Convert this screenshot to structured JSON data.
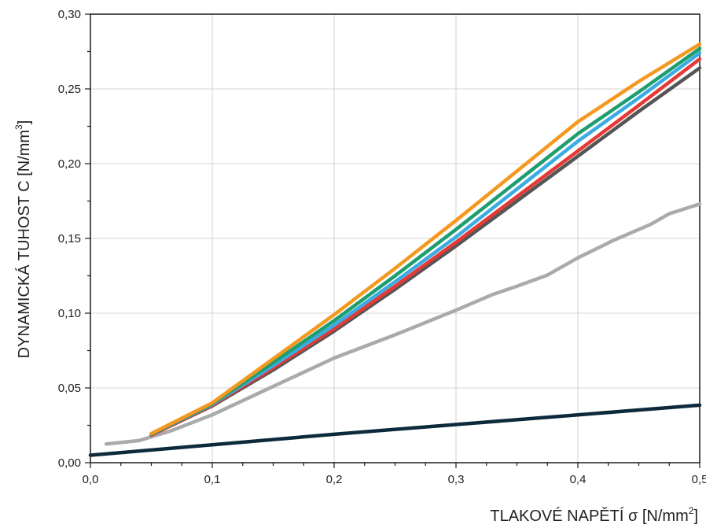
{
  "chart_data": {
    "type": "line",
    "title": "",
    "xlabel": "TLAKOVÉ NAPĚTÍ σ [N/mm",
    "xlabel_sup": "2",
    "xlabel_end": "]",
    "ylabel": "DYNAMICKÁ TUHOST C [N/mm",
    "ylabel_sup": "3",
    "ylabel_end": "]",
    "xlim": [
      0,
      0.5
    ],
    "ylim": [
      0,
      0.3
    ],
    "x_ticks": [
      0,
      0.1,
      0.2,
      0.3,
      0.4,
      0.5
    ],
    "x_tick_labels": [
      "0,0",
      "0,1",
      "0,2",
      "0,3",
      "0,4",
      "0,5"
    ],
    "y_ticks": [
      0,
      0.05,
      0.1,
      0.15,
      0.2,
      0.25,
      0.3
    ],
    "y_tick_labels": [
      "0,00",
      "0,05",
      "0,10",
      "0,15",
      "0,20",
      "0,25",
      "0,30"
    ],
    "x_grid": [
      0.1,
      0.2,
      0.3,
      0.4
    ],
    "y_grid": [
      0.05,
      0.1,
      0.15,
      0.2,
      0.25
    ],
    "grid": true,
    "series": [
      {
        "color": "#aaaaaa",
        "points": [
          [
            0.013,
            0.0125
          ],
          [
            0.04,
            0.0148
          ],
          [
            0.065,
            0.021
          ],
          [
            0.1,
            0.032
          ],
          [
            0.15,
            0.051
          ],
          [
            0.2,
            0.07
          ],
          [
            0.25,
            0.0855
          ],
          [
            0.3,
            0.102
          ],
          [
            0.33,
            0.1125
          ],
          [
            0.35,
            0.118
          ],
          [
            0.375,
            0.1255
          ],
          [
            0.4,
            0.137
          ],
          [
            0.43,
            0.149
          ],
          [
            0.46,
            0.1595
          ],
          [
            0.475,
            0.1665
          ],
          [
            0.5,
            0.173
          ]
        ]
      },
      {
        "color": "#555555",
        "points": [
          [
            0.05,
            0.0185
          ],
          [
            0.1,
            0.038
          ],
          [
            0.15,
            0.062
          ],
          [
            0.2,
            0.088
          ],
          [
            0.25,
            0.116
          ],
          [
            0.3,
            0.145
          ],
          [
            0.35,
            0.175
          ],
          [
            0.4,
            0.205
          ],
          [
            0.45,
            0.235
          ],
          [
            0.5,
            0.264
          ]
        ]
      },
      {
        "color": "#e53935",
        "points": [
          [
            0.05,
            0.0185
          ],
          [
            0.1,
            0.0385
          ],
          [
            0.15,
            0.0635
          ],
          [
            0.2,
            0.0895
          ],
          [
            0.25,
            0.118
          ],
          [
            0.3,
            0.1475
          ],
          [
            0.35,
            0.178
          ],
          [
            0.4,
            0.2085
          ],
          [
            0.45,
            0.239
          ],
          [
            0.5,
            0.27
          ]
        ]
      },
      {
        "color": "#3aace3",
        "points": [
          [
            0.05,
            0.019
          ],
          [
            0.1,
            0.039
          ],
          [
            0.15,
            0.065
          ],
          [
            0.2,
            0.092
          ],
          [
            0.25,
            0.121
          ],
          [
            0.3,
            0.151
          ],
          [
            0.35,
            0.183
          ],
          [
            0.4,
            0.215
          ],
          [
            0.45,
            0.244
          ],
          [
            0.5,
            0.274
          ]
        ]
      },
      {
        "color": "#1e9e6e",
        "points": [
          [
            0.05,
            0.019
          ],
          [
            0.1,
            0.0395
          ],
          [
            0.15,
            0.067
          ],
          [
            0.2,
            0.095
          ],
          [
            0.25,
            0.125
          ],
          [
            0.3,
            0.156
          ],
          [
            0.35,
            0.188
          ],
          [
            0.4,
            0.22
          ],
          [
            0.45,
            0.248
          ],
          [
            0.5,
            0.277
          ]
        ]
      },
      {
        "color": "#f5981f",
        "points": [
          [
            0.05,
            0.0195
          ],
          [
            0.1,
            0.04
          ],
          [
            0.15,
            0.0695
          ],
          [
            0.2,
            0.099
          ],
          [
            0.25,
            0.13
          ],
          [
            0.3,
            0.162
          ],
          [
            0.35,
            0.195
          ],
          [
            0.4,
            0.228
          ],
          [
            0.45,
            0.255
          ],
          [
            0.5,
            0.28
          ]
        ]
      },
      {
        "color": "#0d2a3c",
        "points": [
          [
            0.0,
            0.005
          ],
          [
            0.1,
            0.012
          ],
          [
            0.2,
            0.019
          ],
          [
            0.3,
            0.0255
          ],
          [
            0.4,
            0.032
          ],
          [
            0.5,
            0.0385
          ]
        ]
      }
    ]
  }
}
